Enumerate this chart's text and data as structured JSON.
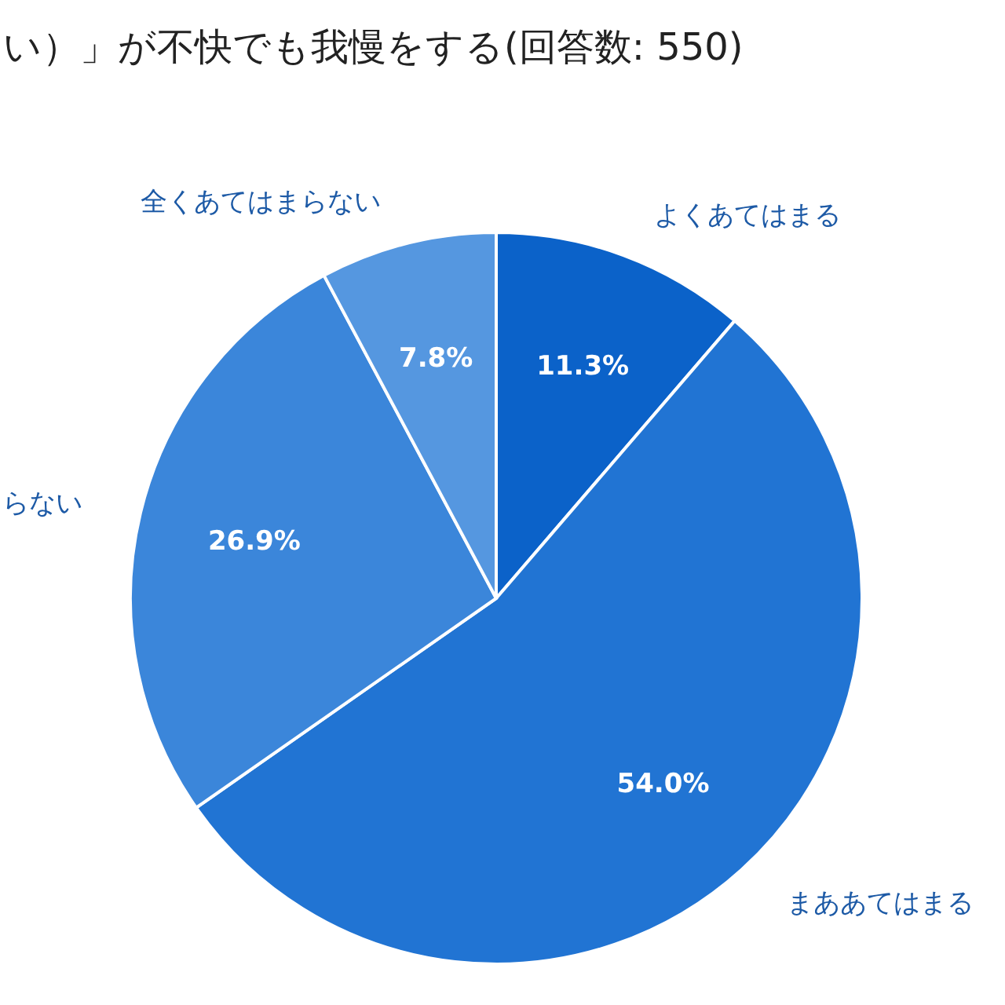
{
  "chart_data": {
    "type": "pie",
    "title": "い）」が不快でも我慢をする(回答数: 550)",
    "categories": [
      "よくあてはまる",
      "まああてはまる",
      "らない",
      "全くあてはまらない"
    ],
    "values": [
      11.3,
      54.0,
      26.9,
      7.8
    ],
    "value_labels": [
      "11.3%",
      "54.0%",
      "26.9%",
      "7.8%"
    ],
    "colors": [
      "#0b62c9",
      "#2174d3",
      "#3b86da",
      "#5597e0"
    ]
  }
}
